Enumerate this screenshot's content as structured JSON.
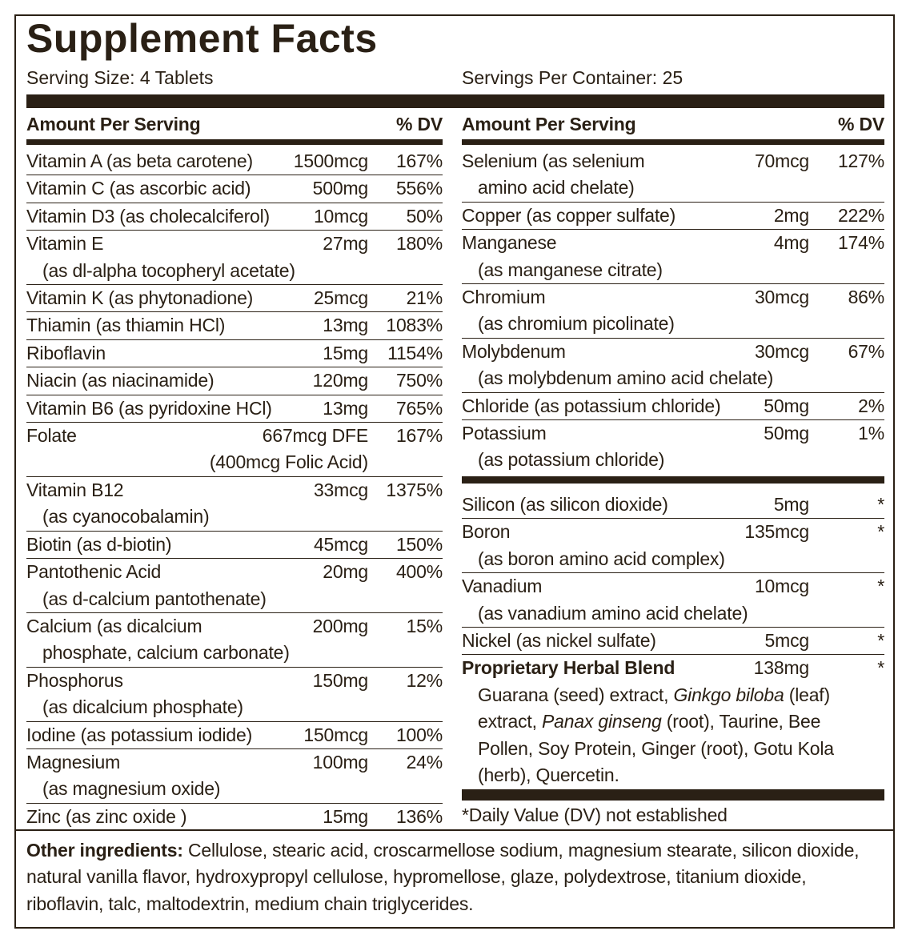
{
  "title": "Supplement Facts",
  "serving_size": "Serving Size: 4 Tablets",
  "servings_per_container": "Servings Per Container: 25",
  "left": {
    "header": {
      "amount": "Amount Per Serving",
      "dv": "% DV"
    },
    "rows": [
      {
        "name": "Vitamin A (as beta carotene)",
        "amount": "1500mcg",
        "dv": "167%"
      },
      {
        "name": "Vitamin C (as ascorbic acid)",
        "amount": "500mg",
        "dv": "556%"
      },
      {
        "name": "Vitamin D3 (as cholecalciferol)",
        "amount": "10mcg",
        "dv": "50%"
      },
      {
        "name": "Vitamin E",
        "sub": "(as dl-alpha tocopheryl acetate)",
        "amount": "27mg",
        "dv": "180%"
      },
      {
        "name": "Vitamin K (as phytonadione)",
        "amount": "25mcg",
        "dv": "21%"
      },
      {
        "name": "Thiamin (as thiamin HCl)",
        "amount": "13mg",
        "dv": "1083%"
      },
      {
        "name": "Riboflavin",
        "amount": "15mg",
        "dv": "1154%"
      },
      {
        "name": "Niacin (as niacinamide)",
        "amount": "120mg",
        "dv": "750%"
      },
      {
        "name": "Vitamin B6 (as pyridoxine HCl)",
        "amount": "13mg",
        "dv": "765%"
      },
      {
        "name": "Folate",
        "amount": "667mcg DFE",
        "amount_note": "(400mcg Folic Acid)",
        "dv": "167%"
      },
      {
        "name": "Vitamin B12",
        "sub": "(as cyanocobalamin)",
        "amount": "33mcg",
        "dv": "1375%"
      },
      {
        "name": "Biotin (as d-biotin)",
        "amount": "45mcg",
        "dv": "150%"
      },
      {
        "name": "Pantothenic Acid",
        "sub": "(as d-calcium pantothenate)",
        "amount": "20mg",
        "dv": "400%"
      },
      {
        "name": "Calcium (as dicalcium",
        "sub": "phosphate, calcium carbonate)",
        "amount": "200mg",
        "dv": "15%"
      },
      {
        "name": "Phosphorus",
        "sub": "(as dicalcium phosphate)",
        "amount": "150mg",
        "dv": "12%"
      },
      {
        "name": "Iodine (as potassium iodide)",
        "amount": "150mcg",
        "dv": "100%"
      },
      {
        "name": "Magnesium",
        "sub": "(as magnesium oxide)",
        "amount": "100mg",
        "dv": "24%"
      },
      {
        "name": "Zinc (as zinc oxide )",
        "amount": "15mg",
        "dv": "136%"
      }
    ]
  },
  "right": {
    "header": {
      "amount": "Amount Per Serving",
      "dv": "% DV"
    },
    "rows": [
      {
        "name": "Selenium (as selenium",
        "sub": "amino acid chelate)",
        "amount": "70mcg",
        "dv": "127%"
      },
      {
        "name": "Copper (as copper sulfate)",
        "amount": "2mg",
        "dv": "222%"
      },
      {
        "name": "Manganese",
        "sub": "(as manganese citrate)",
        "amount": "4mg",
        "dv": "174%"
      },
      {
        "name": "Chromium",
        "sub": "(as chromium picolinate)",
        "amount": "30mcg",
        "dv": "86%"
      },
      {
        "name": "Molybdenum",
        "sub": "(as molybdenum amino acid chelate)",
        "amount": "30mcg",
        "dv": "67%"
      },
      {
        "name": "Chloride (as potassium chloride)",
        "amount": "50mg",
        "dv": "2%"
      },
      {
        "name": "Potassium",
        "sub": "(as potassium chloride)",
        "amount": "50mg",
        "dv": "1%"
      }
    ],
    "other_rows": [
      {
        "name": "Silicon (as silicon dioxide)",
        "amount": "5mg",
        "dv": "*"
      },
      {
        "name": "Boron",
        "sub": "(as boron amino acid complex)",
        "amount": "135mcg",
        "dv": "*"
      },
      {
        "name": "Vanadium",
        "sub": "(as vanadium amino acid chelate)",
        "amount": "10mcg",
        "dv": "*"
      },
      {
        "name": "Nickel (as nickel sulfate)",
        "amount": "5mcg",
        "dv": "*"
      }
    ],
    "blend": {
      "name": "Proprietary Herbal Blend",
      "amount": "138mg",
      "dv": "*",
      "ingredients": [
        {
          "text": "Guarana (seed) extract, "
        },
        {
          "text": "Ginkgo biloba",
          "italic": true
        },
        {
          "text": " (leaf) extract, "
        },
        {
          "text": "Panax ginseng",
          "italic": true
        },
        {
          "text": " (root), Taurine, Bee Pollen, Soy Protein, Ginger (root), Gotu Kola (herb), Quercetin."
        }
      ]
    },
    "footnote": "*Daily Value (DV) not established"
  },
  "other_ingredients": {
    "label": "Other ingredients:",
    "text": " Cellulose, stearic acid, croscarmellose sodium, magnesium stearate, silicon dioxide, natural vanilla flavor, hydroxypropyl cellulose, hypromellose, glaze, polydextrose, titanium dioxide, riboflavin, talc, maltodextrin, medium chain triglycerides."
  }
}
